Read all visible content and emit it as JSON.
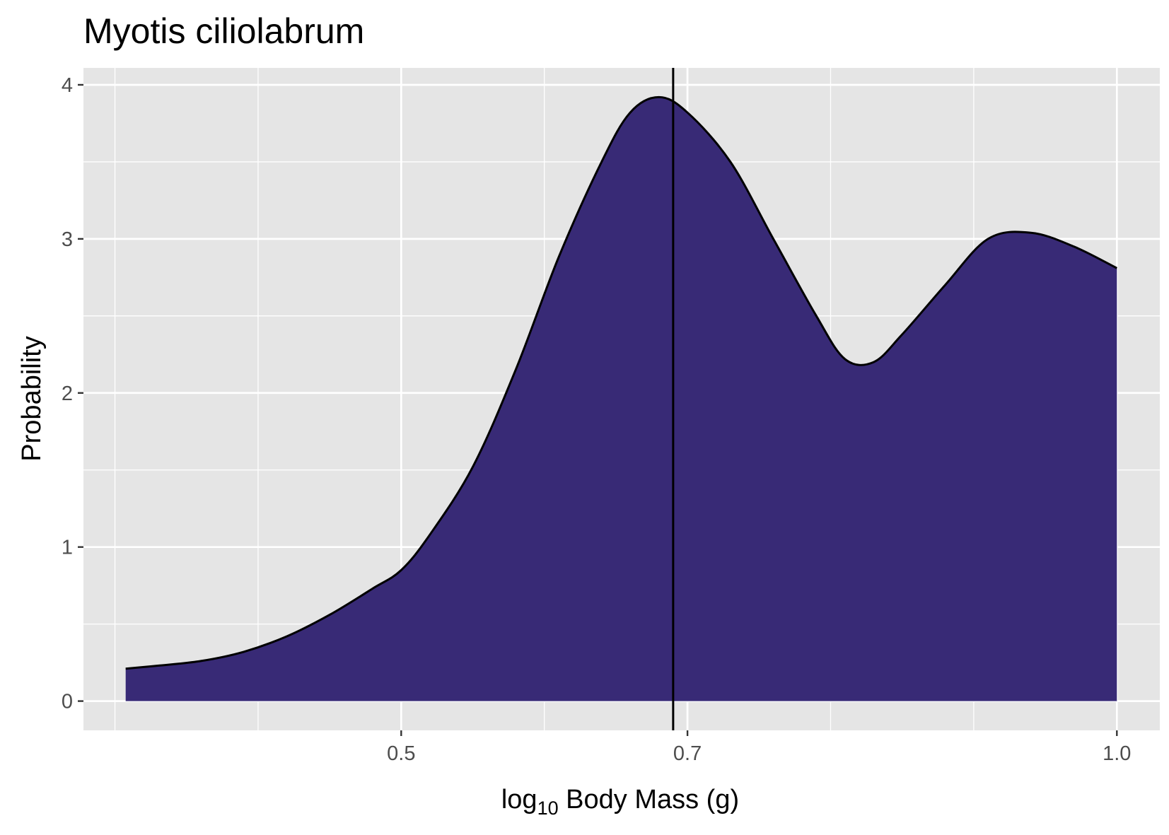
{
  "chart_data": {
    "type": "area",
    "title": "Myotis ciliolabrum",
    "xlabel": {
      "prefix": "log",
      "subscript": "10",
      "suffix": " Body Mass (g)"
    },
    "ylabel": "Probability",
    "x_ticks": [
      {
        "value": 0.5,
        "label": "0.5"
      },
      {
        "value": 0.7,
        "label": "0.7"
      },
      {
        "value": 1.0,
        "label": "1.0"
      }
    ],
    "x_minor_gridlines": [
      0.3,
      0.4,
      0.6,
      0.8,
      0.9
    ],
    "y_ticks": [
      {
        "value": 0,
        "label": "0"
      },
      {
        "value": 1,
        "label": "1"
      },
      {
        "value": 2,
        "label": "2"
      },
      {
        "value": 3,
        "label": "3"
      },
      {
        "value": 4,
        "label": "4"
      }
    ],
    "y_minor_gridlines": [
      0.5,
      1.5,
      2.5,
      3.5
    ],
    "xlim": [
      0.278,
      1.03
    ],
    "ylim": [
      -0.19,
      4.11
    ],
    "grid": true,
    "legend": "none",
    "reference_line_x": 0.69,
    "colors": {
      "fill": "#382A76",
      "line": "#000000",
      "panel": "#E5E5E5",
      "grid": "#FFFFFF"
    },
    "series": [
      {
        "x": [
          0.3075,
          0.33,
          0.36,
          0.39,
          0.42,
          0.45,
          0.48,
          0.5,
          0.52,
          0.55,
          0.58,
          0.61,
          0.64,
          0.66,
          0.68,
          0.7,
          0.73,
          0.76,
          0.79,
          0.81,
          0.83,
          0.85,
          0.88,
          0.91,
          0.94,
          0.97,
          1.0
        ],
        "y": [
          0.21,
          0.23,
          0.26,
          0.32,
          0.42,
          0.56,
          0.73,
          0.85,
          1.08,
          1.52,
          2.15,
          2.88,
          3.5,
          3.82,
          3.92,
          3.82,
          3.5,
          3.0,
          2.5,
          2.22,
          2.2,
          2.38,
          2.7,
          3.0,
          3.04,
          2.95,
          2.81
        ]
      }
    ]
  }
}
